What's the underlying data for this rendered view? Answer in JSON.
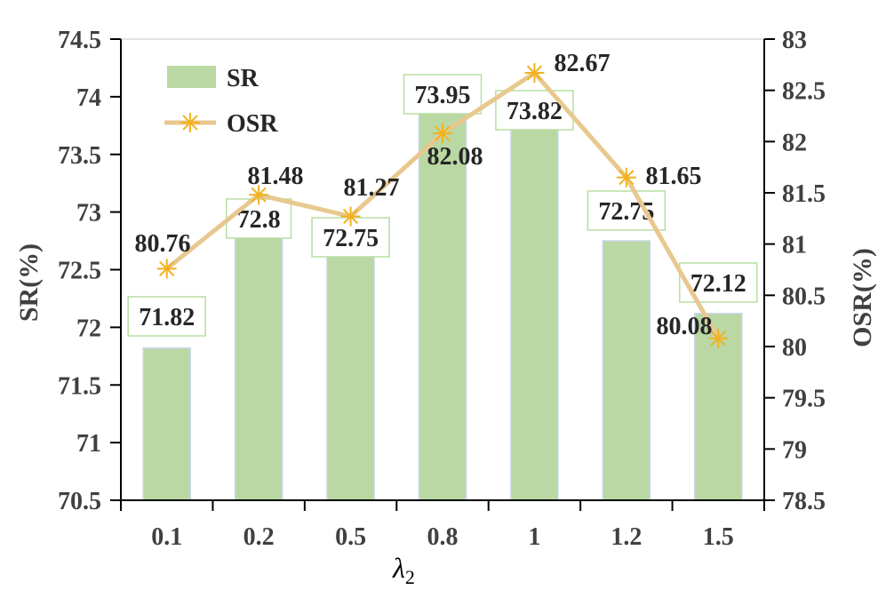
{
  "chart_data": {
    "type": "bar",
    "categories": [
      "0.1",
      "0.2",
      "0.5",
      "0.8",
      "1",
      "1.2",
      "1.5"
    ],
    "series": [
      {
        "name": "SR",
        "type": "bar",
        "axis": "left",
        "values": [
          71.82,
          72.8,
          72.75,
          73.95,
          73.82,
          72.75,
          72.12
        ]
      },
      {
        "name": "OSR",
        "type": "line",
        "axis": "right",
        "values": [
          80.76,
          81.48,
          81.27,
          82.08,
          82.67,
          81.65,
          80.08
        ]
      }
    ],
    "xlabel": "λ",
    "xlabel_sub": "2",
    "ylabel": "SR(%)",
    "y2label": "OSR(%)",
    "ylim": [
      70.5,
      74.5
    ],
    "y2lim": [
      78.5,
      83
    ],
    "yticks": [
      "70.5",
      "71",
      "71.5",
      "72",
      "72.5",
      "73",
      "73.5",
      "74",
      "74.5"
    ],
    "y2ticks": [
      "78.5",
      "79",
      "79.5",
      "80",
      "80.5",
      "81",
      "81.5",
      "82",
      "82.5",
      "83"
    ],
    "legend_position": "top-left",
    "grid": false,
    "colors": {
      "bar": "#b9d8a4",
      "bar_edge": "#c8d4e8",
      "line": "#e8c88e",
      "marker": "#f2b21f",
      "label_box": "#b7dea0",
      "axis_text": "#404040"
    }
  }
}
